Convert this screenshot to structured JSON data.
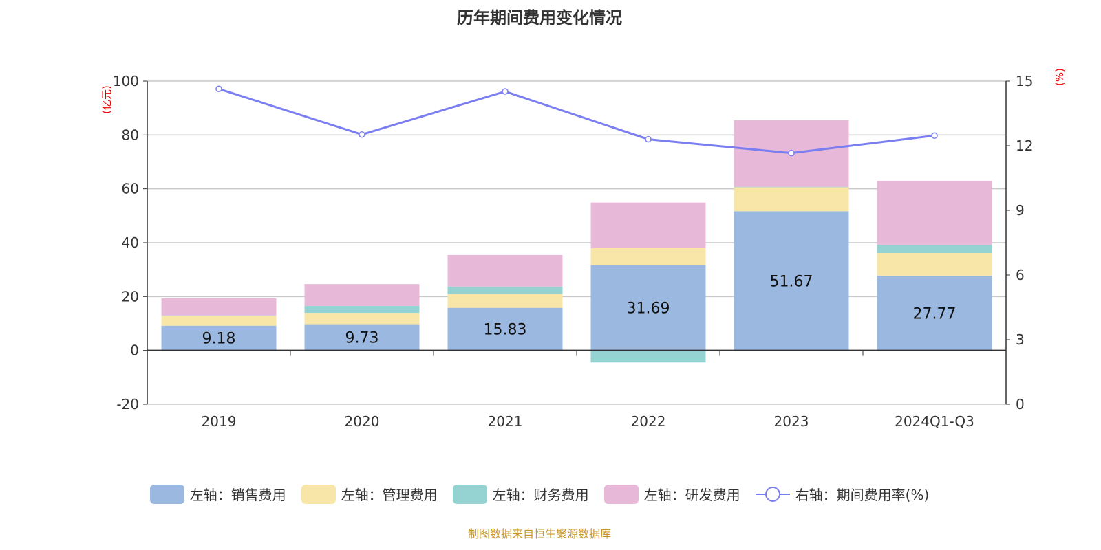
{
  "chart_data": {
    "type": "bar",
    "title": "历年期间费用变化情况",
    "categories": [
      "2019",
      "2020",
      "2021",
      "2022",
      "2023",
      "2024Q1-Q3"
    ],
    "left_axis": {
      "label": "(亿元)",
      "range": [
        -20,
        100
      ],
      "ticks": [
        -20,
        0,
        20,
        40,
        60,
        80,
        100
      ]
    },
    "right_axis": {
      "label": "(%)",
      "range": [
        0,
        15
      ],
      "ticks": [
        0,
        3,
        6,
        9,
        12,
        15
      ]
    },
    "grid": true,
    "legend_position": "bottom",
    "series": [
      {
        "name": "左轴：销售费用",
        "type": "bar",
        "axis": "left",
        "color": "#9bb8e0",
        "values": [
          9.18,
          9.73,
          15.83,
          31.69,
          51.67,
          27.77
        ],
        "show_labels": true
      },
      {
        "name": "左轴：管理费用",
        "type": "bar",
        "axis": "left",
        "color": "#f8e6a8",
        "values": [
          3.7,
          4.2,
          5.1,
          6.3,
          8.9,
          8.4
        ]
      },
      {
        "name": "左轴：财务费用",
        "type": "bar",
        "axis": "left",
        "color": "#95d3d3",
        "values": [
          0.1,
          2.6,
          2.8,
          -4.5,
          0.2,
          3.1
        ]
      },
      {
        "name": "左轴：研发费用",
        "type": "bar",
        "axis": "left",
        "color": "#e7b8d8",
        "values": [
          6.4,
          8.1,
          11.7,
          16.9,
          24.7,
          23.7
        ]
      },
      {
        "name": "右轴：期间费用率(%)",
        "type": "line",
        "axis": "right",
        "color": "#7b7ef0",
        "values": [
          14.64,
          12.52,
          14.52,
          12.3,
          11.66,
          12.47
        ]
      }
    ]
  },
  "footer": "制图数据来自恒生聚源数据库"
}
